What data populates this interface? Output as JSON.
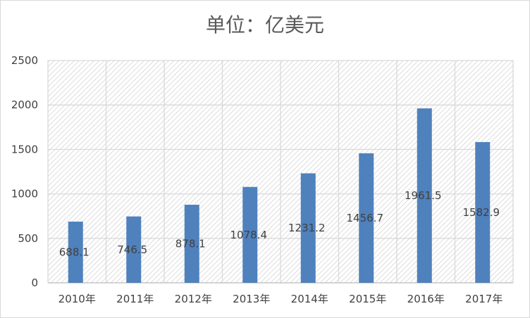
{
  "chart_data": {
    "type": "bar",
    "title": "单位：亿美元",
    "categories": [
      "2010年",
      "2011年",
      "2012年",
      "2013年",
      "2014年",
      "2015年",
      "2016年",
      "2017年"
    ],
    "values": [
      688.1,
      746.5,
      878.1,
      1078.4,
      1231.2,
      1456.7,
      1961.5,
      1582.9
    ],
    "data_labels": [
      "688.1",
      "746.5",
      "878.1",
      "1078.4",
      "1231.2",
      "1456.7",
      "1961.5",
      "1582.9"
    ],
    "ylim": [
      0,
      2500
    ],
    "yticks": [
      "0",
      "500",
      "1000",
      "1500",
      "2000",
      "2500"
    ],
    "grid": true,
    "legend": "none",
    "colors": {
      "bar": "#4f81bd",
      "grid": "#d9d9d9",
      "hatch": "#d0d0d0",
      "text": "#404040",
      "title": "#595959"
    }
  }
}
